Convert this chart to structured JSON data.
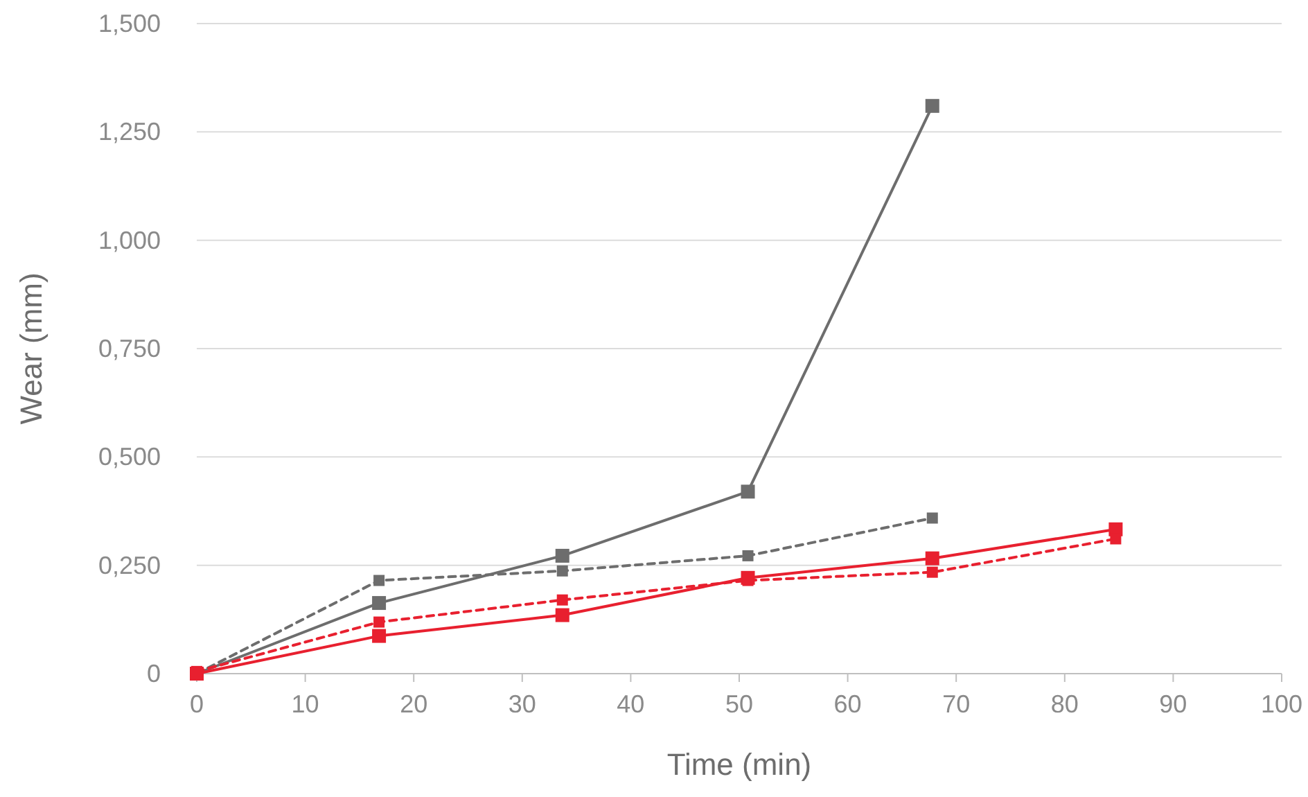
{
  "chart_data": {
    "type": "line",
    "xlabel": "Time (min)",
    "ylabel": "Wear (mm)",
    "xlim": [
      0,
      100
    ],
    "xticks": [
      0,
      10,
      20,
      30,
      40,
      50,
      60,
      70,
      80,
      90,
      100
    ],
    "ylim": [
      0,
      1.5
    ],
    "yticks": [
      {
        "value": 0,
        "label": "0"
      },
      {
        "value": 0.25,
        "label": "0,250"
      },
      {
        "value": 0.5,
        "label": "0,500"
      },
      {
        "value": 0.75,
        "label": "0,750"
      },
      {
        "value": 1,
        "label": "1,000"
      },
      {
        "value": 1.25,
        "label": "1,250"
      },
      {
        "value": 1.5,
        "label": "1,500"
      }
    ],
    "grid": "y",
    "marker": "square",
    "series": [
      {
        "color": "#6d6d6d",
        "line_style": "solid",
        "x": [
          0,
          16.8,
          33.7,
          50.8,
          67.8
        ],
        "values": [
          0,
          0.163,
          0.272,
          0.42,
          1.31
        ]
      },
      {
        "color": "#6d6d6d",
        "line_style": "dashed",
        "x": [
          0,
          16.8,
          33.7,
          50.8,
          67.8
        ],
        "values": [
          0,
          0.215,
          0.237,
          0.272,
          0.359
        ]
      },
      {
        "color": "#e8202f",
        "line_style": "solid",
        "x": [
          0,
          16.8,
          33.7,
          50.8,
          67.8,
          84.7
        ],
        "values": [
          0,
          0.087,
          0.135,
          0.221,
          0.266,
          0.333
        ]
      },
      {
        "color": "#e8202f",
        "line_style": "dashed",
        "x": [
          0,
          16.8,
          33.7,
          50.8,
          67.8,
          84.7
        ],
        "values": [
          0.005,
          0.119,
          0.17,
          0.215,
          0.234,
          0.311
        ]
      }
    ]
  }
}
